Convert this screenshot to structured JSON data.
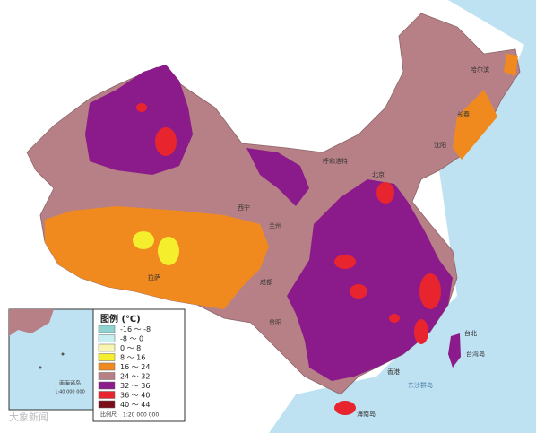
{
  "legend": {
    "title": "图例 (℃)",
    "items": [
      {
        "label": "-16 ～ -8",
        "color": "#8fd3d0"
      },
      {
        "label": "-8 ～ 0",
        "color": "#c7eef0"
      },
      {
        "label": "0 ～ 8",
        "color": "#f8f5b0"
      },
      {
        "label": "8 ～ 16",
        "color": "#f4ee2c"
      },
      {
        "label": "16 ～ 24",
        "color": "#f08a1e"
      },
      {
        "label": "24 ～ 32",
        "color": "#b78086"
      },
      {
        "label": "32 ～ 36",
        "color": "#8b1a8b"
      },
      {
        "label": "36 ～ 40",
        "color": "#e8242f"
      },
      {
        "label": "40 ～ 44",
        "color": "#7a0f1a"
      }
    ]
  },
  "scale": {
    "label": "比例尺",
    "ratio": "1:20 000 000"
  },
  "inset": {
    "title": "南海诸岛",
    "ratio": "1:40 000 000"
  },
  "places": [
    "哈尔滨",
    "长春",
    "沈阳",
    "呼和浩特",
    "北京",
    "西宁",
    "兰州",
    "拉萨",
    "成都",
    "贵阳",
    "台北",
    "台湾岛",
    "香港",
    "海南岛",
    "东沙群岛"
  ],
  "watermark": "大象新闻"
}
